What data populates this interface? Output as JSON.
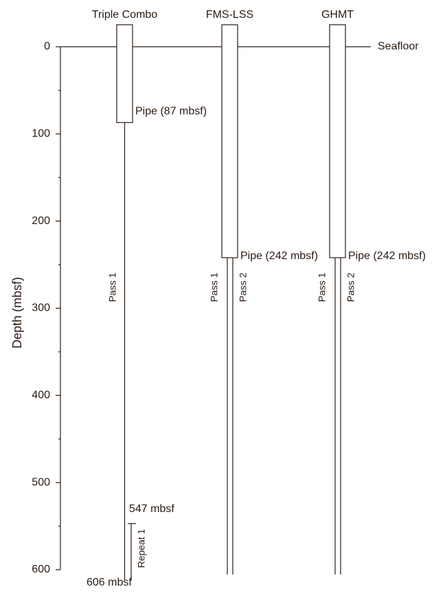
{
  "axis": {
    "label": "Depth (mbsf)",
    "ylim": [
      0,
      600
    ],
    "yticks": [
      0,
      100,
      200,
      300,
      400,
      500,
      600
    ],
    "minor_ticks": [
      50,
      150,
      250,
      350,
      450,
      550
    ]
  },
  "seafloor": {
    "label": "Seafloor",
    "depth": 0
  },
  "tools": [
    {
      "name": "Triple Combo",
      "pipe_depth": 87,
      "pipe_label": "Pipe (87 mbsf)",
      "passes": [
        "Pass 1"
      ],
      "repeat": {
        "name": "Repeat 1",
        "top": 547,
        "top_label": "547 mbsf",
        "bottom": 606,
        "bottom_label": "606 mbsf"
      }
    },
    {
      "name": "FMS-LSS",
      "pipe_depth": 242,
      "pipe_label": "Pipe (242 mbsf)",
      "passes": [
        "Pass 1",
        "Pass 2"
      ]
    },
    {
      "name": "GHMT",
      "pipe_depth": 242,
      "pipe_label": "Pipe (242 mbsf)",
      "passes": [
        "Pass 1",
        "Pass 2"
      ]
    }
  ]
}
